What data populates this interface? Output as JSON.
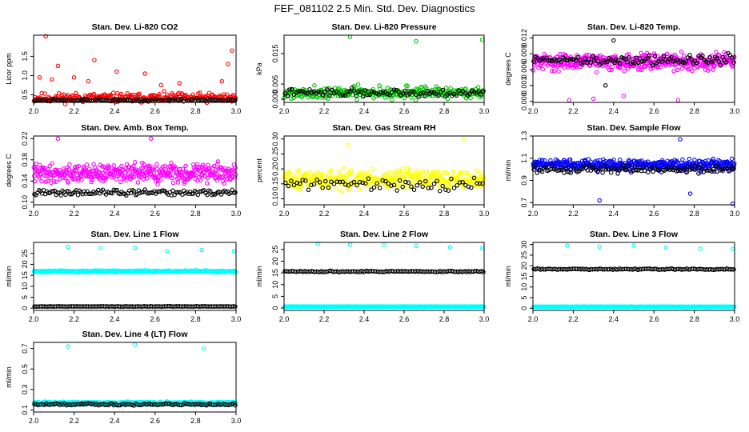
{
  "figure": {
    "title": "FEF_081102  2.5 Min. Std. Dev. Diagnostics"
  },
  "chart_data": [
    {
      "type": "scatter",
      "title": "Stan. Dev. Li-820 CO2",
      "xlabel": "",
      "ylabel": "Licor ppm",
      "xlim": [
        2.0,
        3.0
      ],
      "ylim": [
        0.3,
        2.05
      ],
      "x_ticks": [
        "2.0",
        "2.2",
        "2.4",
        "2.6",
        "2.8",
        "3.0"
      ],
      "y_ticks": [
        "0.5",
        "1.0",
        "1.5"
      ],
      "y_tick_values": [
        0.5,
        1.0,
        1.5
      ],
      "grid": false,
      "series": [
        {
          "color": "#ff0000",
          "base": 0.42,
          "spread": 0.18,
          "n": 260,
          "seed": 11,
          "outliers": [
            [
              2.06,
              2.02
            ],
            [
              2.03,
              0.95
            ],
            [
              2.09,
              0.9
            ],
            [
              2.12,
              1.25
            ],
            [
              2.2,
              0.95
            ],
            [
              2.27,
              0.85
            ],
            [
              2.3,
              1.4
            ],
            [
              2.41,
              1.1
            ],
            [
              2.55,
              1.05
            ],
            [
              2.63,
              0.75
            ],
            [
              2.72,
              0.8
            ],
            [
              2.93,
              0.85
            ],
            [
              2.96,
              1.3
            ],
            [
              2.98,
              1.65
            ]
          ]
        },
        {
          "color": "#000000",
          "base": 0.36,
          "spread": 0.05,
          "n": 110,
          "seed": 12,
          "outliers": []
        }
      ]
    },
    {
      "type": "scatter",
      "title": "Stan. Dev. Li-820 Pressure",
      "xlabel": "",
      "ylabel": "kPa",
      "xlim": [
        2.0,
        3.0
      ],
      "ylim": [
        -0.001,
        0.021
      ],
      "x_ticks": [
        "2.0",
        "2.2",
        "2.4",
        "2.6",
        "2.8",
        "3.0"
      ],
      "y_ticks": [
        "0.000",
        "0.005",
        "0.015"
      ],
      "y_tick_values": [
        0.0,
        0.005,
        0.015
      ],
      "grid": false,
      "series": [
        {
          "color": "#00c000",
          "base": 0.0022,
          "spread": 0.0028,
          "n": 320,
          "seed": 21,
          "outliers": [
            [
              2.33,
              0.0205
            ],
            [
              2.66,
              0.019
            ],
            [
              2.99,
              0.0195
            ]
          ]
        },
        {
          "color": "#000000",
          "base": 0.0022,
          "spread": 0.0018,
          "n": 90,
          "seed": 22,
          "outliers": []
        }
      ]
    },
    {
      "type": "scatter",
      "title": "Stan. Dev. Li-820 Temp.",
      "xlabel": "",
      "ylabel": "degrees C",
      "xlim": [
        2.0,
        3.0
      ],
      "ylim": [
        -0.0002,
        0.0125
      ],
      "x_ticks": [
        "2.0",
        "2.2",
        "2.4",
        "2.6",
        "2.8",
        "3.0"
      ],
      "y_ticks": [
        "0.000",
        "0.003",
        "0.006",
        "0.009",
        "0.012"
      ],
      "y_tick_values": [
        0.0,
        0.003,
        0.006,
        0.009,
        0.012
      ],
      "grid": false,
      "series": [
        {
          "color": "#ff00ff",
          "base": 0.0075,
          "spread": 0.0022,
          "n": 420,
          "seed": 31,
          "outliers": [
            [
              2.3,
              0.0005
            ],
            [
              2.45,
              0.001
            ],
            [
              2.72,
              0.0002
            ],
            [
              2.18,
              0.0002
            ]
          ]
        },
        {
          "color": "#000000",
          "base": 0.0078,
          "spread": 0.0014,
          "n": 110,
          "seed": 32,
          "outliers": [
            [
              2.4,
              0.0115
            ],
            [
              2.36,
              0.003
            ]
          ]
        }
      ]
    },
    {
      "type": "scatter",
      "title": "Stan. Dev. Amb. Box Temp.",
      "xlabel": "",
      "ylabel": "degrees C",
      "xlim": [
        2.0,
        3.0
      ],
      "ylim": [
        0.095,
        0.225
      ],
      "x_ticks": [
        "2.0",
        "2.2",
        "2.4",
        "2.6",
        "2.8",
        "3.0"
      ],
      "y_ticks": [
        "0.10",
        "0.14",
        "0.18",
        "0.22"
      ],
      "y_tick_values": [
        0.1,
        0.14,
        0.18,
        0.22
      ],
      "grid": false,
      "series": [
        {
          "color": "#ff00ff",
          "base": 0.155,
          "spread": 0.025,
          "n": 420,
          "seed": 41,
          "outliers": [
            [
              2.12,
              0.22
            ],
            [
              2.58,
              0.22
            ]
          ]
        },
        {
          "color": "#000000",
          "base": 0.118,
          "spread": 0.008,
          "n": 130,
          "seed": 42,
          "outliers": []
        }
      ]
    },
    {
      "type": "scatter",
      "title": "Stan. Dev. Gas Stream RH",
      "xlabel": "",
      "ylabel": "percent",
      "xlim": [
        2.0,
        3.0
      ],
      "ylim": [
        0.08,
        0.31
      ],
      "x_ticks": [
        "2.0",
        "2.2",
        "2.4",
        "2.6",
        "2.8",
        "3.0"
      ],
      "y_ticks": [
        "0.10",
        "0.15",
        "0.20",
        "0.25",
        "0.30"
      ],
      "y_tick_values": [
        0.1,
        0.15,
        0.2,
        0.25,
        0.3
      ],
      "grid": false,
      "series": [
        {
          "color": "#ffff00",
          "base": 0.165,
          "spread": 0.045,
          "n": 380,
          "seed": 51,
          "outliers": [
            [
              2.32,
              0.28
            ],
            [
              2.9,
              0.3
            ]
          ]
        },
        {
          "color": "#000000",
          "base": 0.15,
          "spread": 0.03,
          "n": 70,
          "seed": 52,
          "outliers": []
        }
      ]
    },
    {
      "type": "scatter",
      "title": "Stan. Dev. Sample Flow",
      "xlabel": "",
      "ylabel": "ml/min",
      "xlim": [
        2.0,
        3.0
      ],
      "ylim": [
        0.68,
        1.3
      ],
      "x_ticks": [
        "2.0",
        "2.2",
        "2.4",
        "2.6",
        "2.8",
        "3.0"
      ],
      "y_ticks": [
        "0.7",
        "0.9",
        "1.1",
        "1.3"
      ],
      "y_tick_values": [
        0.7,
        0.9,
        1.1,
        1.3
      ],
      "grid": false,
      "series": [
        {
          "color": "#0000ff",
          "base": 1.04,
          "spread": 0.07,
          "n": 420,
          "seed": 61,
          "outliers": [
            [
              2.33,
              0.72
            ],
            [
              2.73,
              1.27
            ],
            [
              2.99,
              0.69
            ],
            [
              2.78,
              0.78
            ]
          ]
        },
        {
          "color": "#000000",
          "base": 1.0,
          "spread": 0.05,
          "n": 120,
          "seed": 62,
          "outliers": []
        }
      ]
    },
    {
      "type": "scatter",
      "title": "Stan. Dev. Line 1 Flow",
      "xlabel": "",
      "ylabel": "ml/min",
      "xlim": [
        2.0,
        3.0
      ],
      "ylim": [
        -1.0,
        30.0
      ],
      "x_ticks": [
        "2.0",
        "2.2",
        "2.4",
        "2.6",
        "2.8",
        "3.0"
      ],
      "y_ticks": [
        "0",
        "5",
        "10",
        "15",
        "20",
        "25"
      ],
      "y_tick_values": [
        0,
        5,
        10,
        15,
        20,
        25
      ],
      "grid": false,
      "series": [
        {
          "color": "#00ffff",
          "base": 16.8,
          "spread": 0.6,
          "n": 420,
          "seed": 71,
          "outliers": [
            [
              2.17,
              28.0
            ],
            [
              2.33,
              27.5
            ],
            [
              2.5,
              27.5
            ],
            [
              2.66,
              26.0
            ],
            [
              2.83,
              26.5
            ],
            [
              2.99,
              26.0
            ]
          ]
        },
        {
          "color": "#000000",
          "base": 0.8,
          "spread": 0.15,
          "n": 120,
          "seed": 72,
          "outliers": []
        }
      ]
    },
    {
      "type": "scatter",
      "title": "Stan. Dev. Line 2 Flow",
      "xlabel": "",
      "ylabel": "ml/min",
      "xlim": [
        2.0,
        3.0
      ],
      "ylim": [
        -1.0,
        28.0
      ],
      "x_ticks": [
        "2.0",
        "2.2",
        "2.4",
        "2.6",
        "2.8",
        "3.0"
      ],
      "y_ticks": [
        "0",
        "5",
        "10",
        "15",
        "20",
        "25"
      ],
      "y_tick_values": [
        0,
        5,
        10,
        15,
        20,
        25
      ],
      "grid": false,
      "series": [
        {
          "color": "#00ffff",
          "base": 0.6,
          "spread": 0.15,
          "n": 420,
          "seed": 81,
          "outliers": [
            [
              2.17,
              27.5
            ],
            [
              2.33,
              27.0
            ],
            [
              2.5,
              27.0
            ],
            [
              2.66,
              26.5
            ],
            [
              2.83,
              26.0
            ],
            [
              2.99,
              25.5
            ]
          ]
        },
        {
          "color": "#000000",
          "base": 15.6,
          "spread": 0.4,
          "n": 120,
          "seed": 82,
          "outliers": []
        }
      ]
    },
    {
      "type": "scatter",
      "title": "Stan. Dev. Line 3 Flow",
      "xlabel": "",
      "ylabel": "ml/min",
      "xlim": [
        2.0,
        3.0
      ],
      "ylim": [
        -1.0,
        31.0
      ],
      "x_ticks": [
        "2.0",
        "2.2",
        "2.4",
        "2.6",
        "2.8",
        "3.0"
      ],
      "y_ticks": [
        "0",
        "5",
        "10",
        "15",
        "20",
        "25",
        "30"
      ],
      "y_tick_values": [
        0,
        5,
        10,
        15,
        20,
        25,
        30
      ],
      "grid": false,
      "series": [
        {
          "color": "#00ffff",
          "base": 0.7,
          "spread": 0.15,
          "n": 420,
          "seed": 91,
          "outliers": [
            [
              2.17,
              29.5
            ],
            [
              2.33,
              29.0
            ],
            [
              2.5,
              29.5
            ],
            [
              2.66,
              28.5
            ],
            [
              2.83,
              28.0
            ],
            [
              2.99,
              28.0
            ]
          ]
        },
        {
          "color": "#000000",
          "base": 18.4,
          "spread": 0.5,
          "n": 120,
          "seed": 92,
          "outliers": []
        }
      ]
    },
    {
      "type": "scatter",
      "title": "Stan. Dev. Line 4 (LT) Flow",
      "xlabel": "",
      "ylabel": "ml/min",
      "xlim": [
        2.0,
        3.0
      ],
      "ylim": [
        0.08,
        0.76
      ],
      "x_ticks": [
        "2.0",
        "2.2",
        "2.4",
        "2.6",
        "2.8",
        "3.0"
      ],
      "y_ticks": [
        "0.1",
        "0.3",
        "0.5",
        "0.7"
      ],
      "y_tick_values": [
        0.1,
        0.3,
        0.5,
        0.7
      ],
      "grid": false,
      "series": [
        {
          "color": "#00ffff",
          "base": 0.17,
          "spread": 0.015,
          "n": 420,
          "seed": 101,
          "outliers": [
            [
              2.17,
              0.72
            ],
            [
              2.5,
              0.74
            ],
            [
              2.84,
              0.7
            ]
          ]
        },
        {
          "color": "#000000",
          "base": 0.155,
          "spread": 0.015,
          "n": 120,
          "seed": 102,
          "outliers": []
        }
      ]
    }
  ]
}
